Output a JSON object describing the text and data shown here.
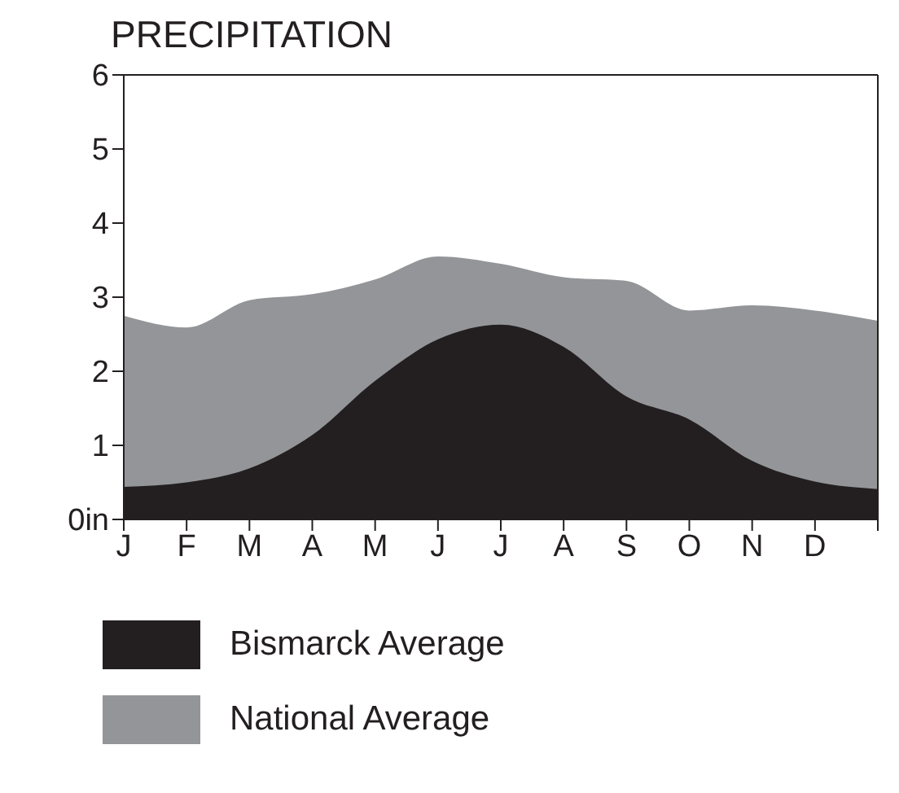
{
  "chart_data": {
    "type": "area",
    "title": "PRECIPITATION",
    "categories": [
      "J",
      "F",
      "M",
      "A",
      "M",
      "J",
      "J",
      "A",
      "S",
      "O",
      "N",
      "D",
      null
    ],
    "ylim": [
      0,
      6
    ],
    "yticks": [
      {
        "value": 0,
        "label": "0in"
      },
      1,
      2,
      3,
      4,
      5,
      6
    ],
    "series": [
      {
        "name": "National Average",
        "color": "#939598",
        "values": [
          2.75,
          2.59,
          2.96,
          3.04,
          3.24,
          3.55,
          3.45,
          3.27,
          3.22,
          2.82,
          2.89,
          2.82,
          2.68
        ]
      },
      {
        "name": "Bismarck Average",
        "color": "#231f20",
        "values": [
          0.44,
          0.5,
          0.69,
          1.14,
          1.87,
          2.43,
          2.63,
          2.33,
          1.66,
          1.35,
          0.79,
          0.51,
          0.41
        ]
      }
    ],
    "legend": "bottom"
  }
}
